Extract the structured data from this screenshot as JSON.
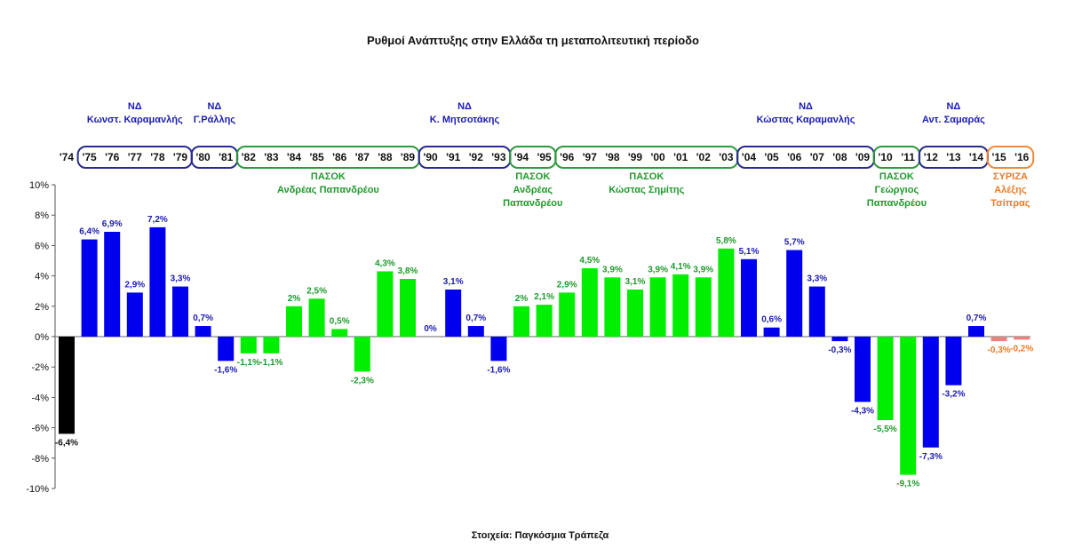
{
  "chart_data": {
    "type": "bar",
    "title": "Ρυθμοί Ανάπτυξης στην Ελλάδα τη μεταπολιτευτική περίοδο",
    "source": "Στοιχεία: Παγκόσμια Τράπεζα",
    "xlabel": "",
    "ylabel": "",
    "ylim": [
      -10,
      10
    ],
    "yticks": [
      "10%",
      "8%",
      "6%",
      "4%",
      "2%",
      "0%",
      "-2%",
      "-4%",
      "-6%",
      "-8%",
      "-10%"
    ],
    "grid": false,
    "categories": [
      "'74",
      "'75",
      "'76",
      "'77",
      "'78",
      "'79",
      "'80",
      "'81",
      "'82",
      "'83",
      "'84",
      "'85",
      "'86",
      "'87",
      "'88",
      "'89",
      "'90",
      "'91",
      "'92",
      "'93",
      "'94",
      "'95",
      "'96",
      "'97",
      "'98",
      "'99",
      "'00",
      "'01",
      "'02",
      "'03",
      "'04",
      "'05",
      "'06",
      "'07",
      "'08",
      "'09",
      "'10",
      "'11",
      "'12",
      "'13",
      "'14",
      "'15",
      "'16"
    ],
    "values": [
      -6.4,
      6.4,
      6.9,
      2.9,
      7.2,
      3.3,
      0.7,
      -1.6,
      -1.1,
      -1.1,
      2,
      2.5,
      0.5,
      -2.3,
      4.3,
      3.8,
      0,
      3.1,
      0.7,
      -1.6,
      2,
      2.1,
      2.9,
      4.5,
      3.9,
      3.1,
      3.9,
      4.1,
      3.9,
      5.8,
      5.1,
      0.6,
      5.7,
      3.3,
      -0.3,
      -4.3,
      -5.5,
      -9.1,
      -7.3,
      -3.2,
      0.7,
      -0.3,
      -0.2
    ],
    "data_labels": [
      "-6,4%",
      "6,4%",
      "6,9%",
      "2,9%",
      "7,2%",
      "3,3%",
      "0,7%",
      "-1,6%",
      "-1,1%",
      "-1,1%",
      "2%",
      "2,5%",
      "0,5%",
      "-2,3%",
      "4,3%",
      "3,8%",
      "0%",
      "3,1%",
      "0,7%",
      "-1,6%",
      "2%",
      "2,1%",
      "2,9%",
      "4,5%",
      "3,9%",
      "3,1%",
      "3,9%",
      "4,1%",
      "3,9%",
      "5,8%",
      "5,1%",
      "0,6%",
      "5,7%",
      "3,3%",
      "-0,3%",
      "-4,3%",
      "-5,5%",
      "-9,1%",
      "-7,3%",
      "-3,2%",
      "0,7%",
      "-0,3%",
      "-0,2%"
    ],
    "periods": [
      {
        "party": "",
        "leader": [],
        "start": 0,
        "end": 0,
        "color": "#000000"
      },
      {
        "party": "ΝΔ",
        "leader": [
          "Κωνστ. Καραμανλής"
        ],
        "start": 1,
        "end": 5,
        "color": "#0000ee"
      },
      {
        "party": "ΝΔ",
        "leader": [
          "Γ.Ράλλης"
        ],
        "start": 6,
        "end": 7,
        "color": "#0000ee"
      },
      {
        "party": "ΠΑΣΟΚ",
        "leader": [
          "Ανδρέας Παπανδρέου"
        ],
        "start": 8,
        "end": 15,
        "color": "#00ee00"
      },
      {
        "party": "ΝΔ",
        "leader": [
          "Κ. Μητσοτάκης"
        ],
        "start": 16,
        "end": 19,
        "color": "#0000ee"
      },
      {
        "party": "ΠΑΣΟΚ",
        "leader": [
          "Ανδρέας",
          "Παπανδρέου"
        ],
        "start": 20,
        "end": 21,
        "color": "#00ee00"
      },
      {
        "party": "ΠΑΣΟΚ",
        "leader": [
          "Κώστας Σημίτης"
        ],
        "start": 22,
        "end": 29,
        "color": "#00ee00"
      },
      {
        "party": "ΝΔ",
        "leader": [
          "Κώστας Καραμανλής"
        ],
        "start": 30,
        "end": 35,
        "color": "#0000ee"
      },
      {
        "party": "ΠΑΣΟΚ",
        "leader": [
          "Γεώργιος",
          "Παπανδρέου"
        ],
        "start": 36,
        "end": 37,
        "color": "#00ee00"
      },
      {
        "party": "ΝΔ",
        "leader": [
          "Αντ. Σαμαράς"
        ],
        "start": 38,
        "end": 40,
        "color": "#0000ee"
      },
      {
        "party": "ΣΥΡΙΖΑ",
        "leader": [
          "Αλέξης",
          "Τσίπρας"
        ],
        "start": 41,
        "end": 42,
        "color": "#f08080"
      }
    ]
  }
}
